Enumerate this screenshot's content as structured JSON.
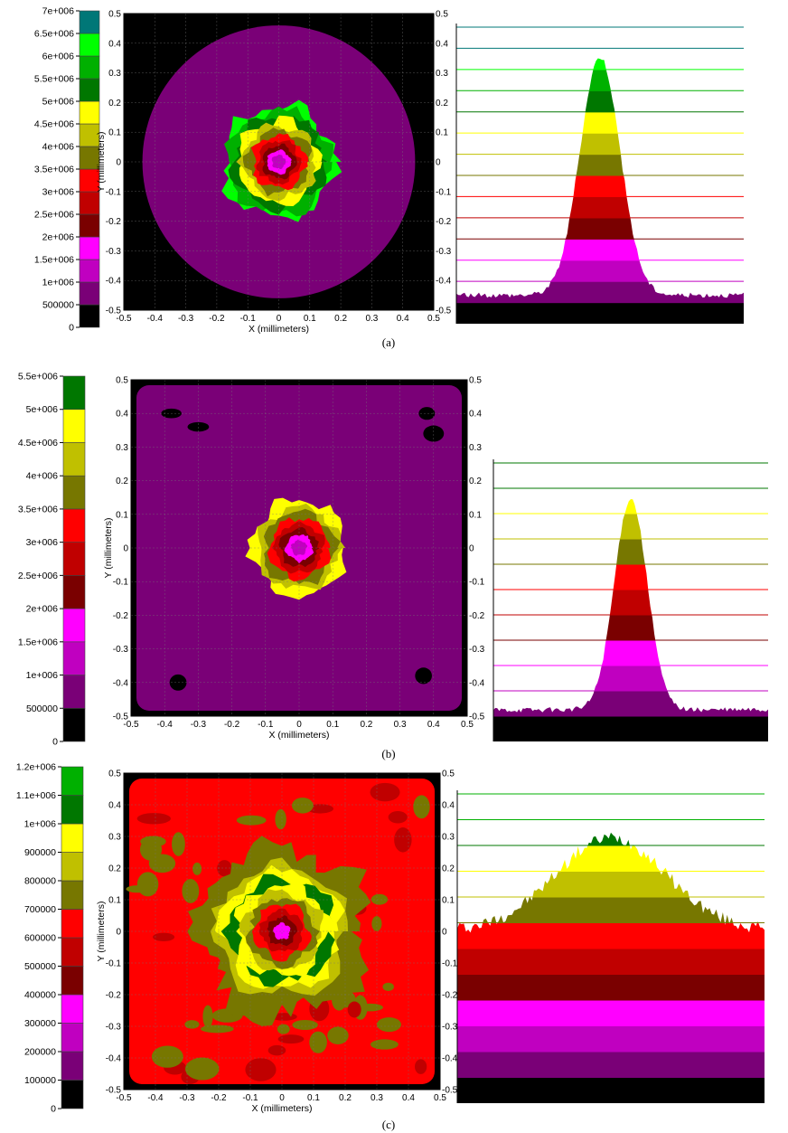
{
  "palette": [
    "#000000",
    "#7a0077",
    "#c000c0",
    "#ff00ff",
    "#7a0000",
    "#c00000",
    "#ff0000",
    "#777700",
    "#c0c000",
    "#ffff00",
    "#007700",
    "#00b000",
    "#00ff00",
    "#007777"
  ],
  "chart_data": [
    {
      "type": "heatmap",
      "panel": "(a)",
      "caption": "(a)",
      "shape": "circle",
      "title": "",
      "xlabel": "X (millimeters)",
      "ylabel": "Y (millimeters)",
      "xlim": [
        -0.5,
        0.5
      ],
      "ylim": [
        -0.5,
        0.5
      ],
      "xticks": [
        "-0.5",
        "-0.4",
        "-0.3",
        "-0.2",
        "-0.1",
        "0",
        "0.1",
        "0.2",
        "0.3",
        "0.4",
        "0.5"
      ],
      "yticks": [
        "-0.5",
        "-0.4",
        "-0.3",
        "-0.2",
        "-0.1",
        "0",
        "0.1",
        "0.2",
        "0.3",
        "0.4",
        "0.5"
      ],
      "colorbar": {
        "min": 0,
        "max": 7000000,
        "tick_labels": [
          "0",
          "500000",
          "1e+006",
          "1.5e+006",
          "2e+006",
          "2.5e+006",
          "3e+006",
          "3.5e+006",
          "4e+006",
          "4.5e+006",
          "5e+006",
          "5.5e+006",
          "6e+006",
          "6.5e+006",
          "7e+006"
        ],
        "colors": [
          "#000000",
          "#7a0077",
          "#c000c0",
          "#ff00ff",
          "#7a0000",
          "#c00000",
          "#ff0000",
          "#777700",
          "#c0c000",
          "#ffff00",
          "#007700",
          "#00b000",
          "#00ff00",
          "#007777"
        ]
      },
      "background_level": 1,
      "core_levels": [
        12,
        11,
        10,
        9,
        8,
        7,
        6,
        5,
        4,
        3,
        2
      ],
      "profile": {
        "peak_level": 12.6,
        "background_level": 1.35,
        "width": 0.07,
        "noise": 0.12
      }
    },
    {
      "type": "heatmap",
      "panel": "(b)",
      "caption": "(b)",
      "shape": "square",
      "title": "",
      "xlabel": "X (millimeters)",
      "ylabel": "Y (millimeters)",
      "xlim": [
        -0.5,
        0.5
      ],
      "ylim": [
        -0.5,
        0.5
      ],
      "xticks": [
        "-0.5",
        "-0.4",
        "-0.3",
        "-0.2",
        "-0.1",
        "0",
        "0.1",
        "0.2",
        "0.3",
        "0.4",
        "0.5"
      ],
      "yticks": [
        "-0.5",
        "-0.4",
        "-0.3",
        "-0.2",
        "-0.1",
        "0",
        "0.1",
        "0.2",
        "0.3",
        "0.4",
        "0.5"
      ],
      "colorbar": {
        "min": 0,
        "max": 5500000,
        "tick_labels": [
          "0",
          "500000",
          "1e+006",
          "1.5e+006",
          "2e+006",
          "2.5e+006",
          "3e+006",
          "3.5e+006",
          "4e+006",
          "4.5e+006",
          "5e+006",
          "5.5e+006"
        ],
        "colors": [
          "#000000",
          "#7a0077",
          "#c000c0",
          "#ff00ff",
          "#7a0000",
          "#c00000",
          "#ff0000",
          "#777700",
          "#c0c000",
          "#ffff00",
          "#007700"
        ]
      },
      "background_level": 1,
      "core_levels": [
        9,
        8,
        7,
        6,
        5,
        4,
        3,
        2
      ],
      "profile": {
        "peak_level": 9.6,
        "background_level": 1.25,
        "width": 0.06,
        "noise": 0.1
      }
    },
    {
      "type": "heatmap",
      "panel": "(c)",
      "caption": "(c)",
      "shape": "square",
      "title": "",
      "xlabel": "X (millimeters)",
      "ylabel": "Y (millimeters)",
      "xlim": [
        -0.5,
        0.5
      ],
      "ylim": [
        -0.5,
        0.5
      ],
      "xticks": [
        "-0.5",
        "-0.4",
        "-0.3",
        "-0.2",
        "-0.1",
        "0",
        "0.1",
        "0.2",
        "0.3",
        "0.4",
        "0.5"
      ],
      "yticks": [
        "-0.5",
        "-0.4",
        "-0.3",
        "-0.2",
        "-0.1",
        "0",
        "0.1",
        "0.2",
        "0.3",
        "0.4",
        "0.5"
      ],
      "colorbar": {
        "min": 0,
        "max": 1200000,
        "tick_labels": [
          "0",
          "100000",
          "200000",
          "300000",
          "400000",
          "500000",
          "600000",
          "700000",
          "800000",
          "900000",
          "1e+006",
          "1.1e+006",
          "1.2e+006"
        ],
        "colors": [
          "#000000",
          "#7a0077",
          "#c000c0",
          "#ff00ff",
          "#7a0000",
          "#c00000",
          "#ff0000",
          "#777700",
          "#c0c000",
          "#ffff00",
          "#007700",
          "#00b000"
        ]
      },
      "background_level": 6,
      "core_levels": [
        8,
        9,
        10,
        9,
        8,
        7,
        6,
        5,
        4,
        3
      ],
      "profile": {
        "peak_level": 10.3,
        "background_level": 6.7,
        "width": 0.18,
        "noise": 0.25
      }
    }
  ]
}
